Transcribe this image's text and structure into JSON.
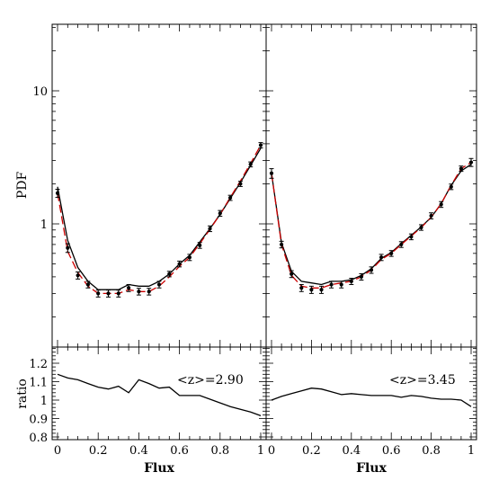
{
  "chart_data": [
    {
      "type": "line",
      "panel": "top-left",
      "ylabel": "PDF",
      "xlabel": "",
      "ylim": [
        0.1,
        30
      ],
      "yscale": "log",
      "xlim": [
        -0.02,
        1.02
      ],
      "yticklabels": [
        "1",
        "10"
      ],
      "series": [
        {
          "color": "#000000",
          "linestyle": "solid",
          "x": [
            0.0,
            0.05,
            0.1,
            0.15,
            0.2,
            0.25,
            0.3,
            0.35,
            0.4,
            0.45,
            0.5,
            0.55,
            0.6,
            0.65,
            0.7,
            0.75,
            0.8,
            0.85,
            0.9,
            0.95,
            1.0
          ],
          "y": [
            1.9,
            0.75,
            0.47,
            0.37,
            0.32,
            0.32,
            0.32,
            0.35,
            0.34,
            0.34,
            0.37,
            0.42,
            0.5,
            0.58,
            0.73,
            0.92,
            1.18,
            1.55,
            2.05,
            2.75,
            3.7
          ]
        },
        {
          "color": "#cc0000",
          "linestyle": "dashed",
          "x": [
            0.0,
            0.05,
            0.1,
            0.15,
            0.2,
            0.25,
            0.3,
            0.35,
            0.4,
            0.45,
            0.5,
            0.55,
            0.6,
            0.65,
            0.7,
            0.75,
            0.8,
            0.85,
            0.9,
            0.95,
            1.0
          ],
          "y": [
            1.7,
            0.62,
            0.43,
            0.34,
            0.3,
            0.3,
            0.3,
            0.32,
            0.31,
            0.31,
            0.34,
            0.4,
            0.48,
            0.56,
            0.71,
            0.91,
            1.18,
            1.58,
            2.1,
            2.85,
            3.9
          ]
        },
        {
          "color": "#000000",
          "style": "points_with_errorbars",
          "x": [
            0.0,
            0.05,
            0.1,
            0.15,
            0.2,
            0.25,
            0.3,
            0.35,
            0.4,
            0.45,
            0.5,
            0.55,
            0.6,
            0.65,
            0.7,
            0.75,
            0.8,
            0.85,
            0.9,
            0.95,
            1.0
          ],
          "y": [
            1.7,
            0.66,
            0.41,
            0.35,
            0.3,
            0.3,
            0.3,
            0.33,
            0.31,
            0.31,
            0.35,
            0.42,
            0.5,
            0.56,
            0.69,
            0.92,
            1.2,
            1.57,
            2.0,
            2.8,
            3.9
          ],
          "yerr": [
            0.12,
            0.05,
            0.025,
            0.02,
            0.018,
            0.018,
            0.018,
            0.02,
            0.018,
            0.018,
            0.02,
            0.02,
            0.025,
            0.03,
            0.035,
            0.045,
            0.06,
            0.07,
            0.09,
            0.12,
            0.18
          ]
        }
      ]
    },
    {
      "type": "line",
      "panel": "top-right",
      "ylabel": "",
      "xlabel": "",
      "ylim": [
        0.1,
        30
      ],
      "yscale": "log",
      "xlim": [
        -0.02,
        1.02
      ],
      "series": [
        {
          "color": "#000000",
          "linestyle": "solid",
          "x": [
            0.0,
            0.05,
            0.1,
            0.15,
            0.2,
            0.25,
            0.3,
            0.35,
            0.4,
            0.45,
            0.5,
            0.55,
            0.6,
            0.65,
            0.7,
            0.75,
            0.8,
            0.85,
            0.9,
            0.95,
            1.0
          ],
          "y": [
            2.4,
            0.72,
            0.44,
            0.37,
            0.36,
            0.35,
            0.37,
            0.37,
            0.38,
            0.41,
            0.46,
            0.55,
            0.61,
            0.71,
            0.82,
            0.95,
            1.12,
            1.42,
            1.95,
            2.5,
            2.8
          ]
        },
        {
          "color": "#cc0000",
          "linestyle": "dashed",
          "x": [
            0.0,
            0.05,
            0.1,
            0.15,
            0.2,
            0.25,
            0.3,
            0.35,
            0.4,
            0.45,
            0.5,
            0.55,
            0.6,
            0.65,
            0.7,
            0.75,
            0.8,
            0.85,
            0.9,
            0.95,
            1.0
          ],
          "y": [
            2.4,
            0.7,
            0.41,
            0.34,
            0.33,
            0.33,
            0.35,
            0.36,
            0.37,
            0.4,
            0.45,
            0.54,
            0.6,
            0.7,
            0.81,
            0.94,
            1.12,
            1.42,
            1.95,
            2.6,
            2.9
          ]
        },
        {
          "color": "#000000",
          "style": "points_with_errorbars",
          "x": [
            0.0,
            0.05,
            0.1,
            0.15,
            0.2,
            0.25,
            0.3,
            0.35,
            0.4,
            0.45,
            0.5,
            0.55,
            0.6,
            0.65,
            0.7,
            0.75,
            0.8,
            0.85,
            0.9,
            0.95,
            1.0
          ],
          "y": [
            2.4,
            0.7,
            0.42,
            0.33,
            0.32,
            0.32,
            0.35,
            0.35,
            0.37,
            0.4,
            0.45,
            0.56,
            0.6,
            0.7,
            0.8,
            0.94,
            1.15,
            1.4,
            1.9,
            2.6,
            2.9
          ],
          "yerr": [
            0.2,
            0.04,
            0.025,
            0.02,
            0.02,
            0.02,
            0.02,
            0.02,
            0.02,
            0.022,
            0.025,
            0.03,
            0.03,
            0.035,
            0.04,
            0.045,
            0.06,
            0.07,
            0.09,
            0.12,
            0.2
          ]
        }
      ]
    },
    {
      "type": "line",
      "panel": "bottom-left",
      "ylabel": "ratio",
      "xlabel": "Flux",
      "ylim": [
        0.8,
        1.3
      ],
      "xlim": [
        -0.02,
        1.02
      ],
      "yticklabels": [
        "0.8",
        "0.9",
        "1",
        "1.1",
        "1.2"
      ],
      "xticklabels": [
        "0",
        "0.2",
        "0.4",
        "0.6",
        "0.8",
        "1"
      ],
      "annotation": {
        "text": "<z>=2.90",
        "color": "#0000cc"
      },
      "series": [
        {
          "color": "#000000",
          "linestyle": "solid",
          "x": [
            0.0,
            0.05,
            0.1,
            0.15,
            0.2,
            0.25,
            0.3,
            0.35,
            0.4,
            0.45,
            0.5,
            0.55,
            0.6,
            0.65,
            0.7,
            0.75,
            0.8,
            0.85,
            0.9,
            0.95,
            1.0
          ],
          "y": [
            1.14,
            1.12,
            1.11,
            1.09,
            1.07,
            1.06,
            1.075,
            1.04,
            1.11,
            1.09,
            1.065,
            1.07,
            1.025,
            1.025,
            1.025,
            1.005,
            0.985,
            0.965,
            0.95,
            0.935,
            0.915
          ]
        }
      ]
    },
    {
      "type": "line",
      "panel": "bottom-right",
      "ylabel": "",
      "xlabel": "Flux",
      "ylim": [
        0.8,
        1.3
      ],
      "xlim": [
        -0.02,
        1.02
      ],
      "xticklabels": [
        "0",
        "0.2",
        "0.4",
        "0.6",
        "0.8",
        "1"
      ],
      "annotation": {
        "text": "<z>=3.45",
        "color": "#cc0000"
      },
      "series": [
        {
          "color": "#000000",
          "linestyle": "solid",
          "x": [
            0.0,
            0.05,
            0.1,
            0.15,
            0.2,
            0.25,
            0.3,
            0.35,
            0.4,
            0.45,
            0.5,
            0.55,
            0.6,
            0.65,
            0.7,
            0.75,
            0.8,
            0.85,
            0.9,
            0.95,
            1.0
          ],
          "y": [
            1.0,
            1.02,
            1.035,
            1.05,
            1.065,
            1.06,
            1.045,
            1.03,
            1.035,
            1.03,
            1.025,
            1.025,
            1.025,
            1.015,
            1.025,
            1.02,
            1.01,
            1.005,
            1.005,
            1.0,
            0.965
          ]
        }
      ]
    }
  ]
}
